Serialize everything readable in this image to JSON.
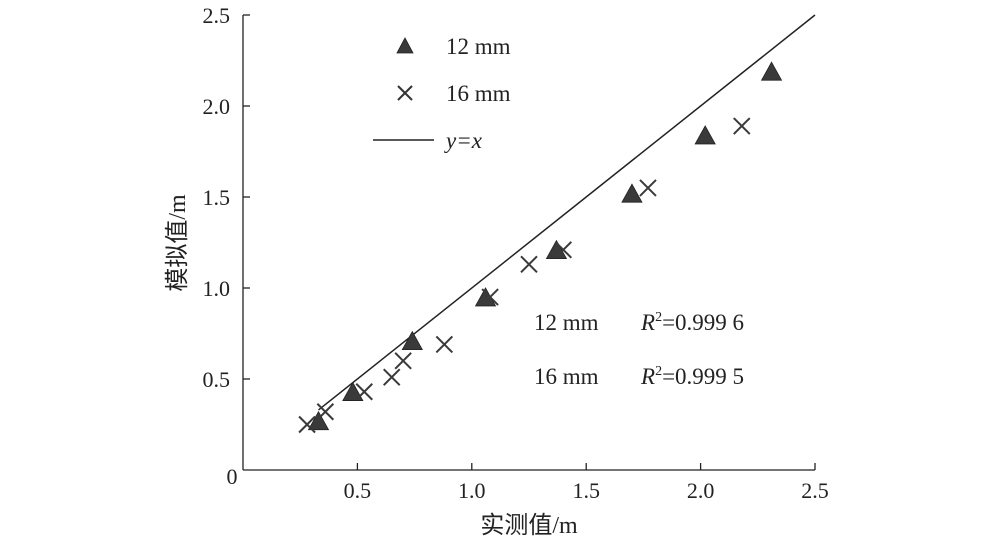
{
  "chart_data": {
    "type": "scatter",
    "xlabel": "实测值/m",
    "ylabel": "模拟值/m",
    "xlim": [
      0,
      2.5
    ],
    "ylim": [
      0,
      2.5
    ],
    "x_ticks": [
      "0.5",
      "1.0",
      "1.5",
      "2.0",
      "2.5"
    ],
    "y_ticks": [
      "0.5",
      "1.0",
      "1.5",
      "2.0",
      "2.5"
    ],
    "origin_label": "0",
    "grid": false,
    "legend_position": "top-left",
    "series": [
      {
        "name": "12 mm",
        "marker": "triangle",
        "color": "#3a3a3a",
        "points": [
          {
            "x": 0.33,
            "y": 0.26
          },
          {
            "x": 0.48,
            "y": 0.42
          },
          {
            "x": 0.74,
            "y": 0.7
          },
          {
            "x": 1.06,
            "y": 0.94
          },
          {
            "x": 1.37,
            "y": 1.2
          },
          {
            "x": 1.7,
            "y": 1.51
          },
          {
            "x": 2.02,
            "y": 1.83
          },
          {
            "x": 2.31,
            "y": 2.18
          }
        ]
      },
      {
        "name": "16 mm",
        "marker": "cross",
        "color": "#3a3a3a",
        "points": [
          {
            "x": 0.28,
            "y": 0.25
          },
          {
            "x": 0.36,
            "y": 0.32
          },
          {
            "x": 0.53,
            "y": 0.43
          },
          {
            "x": 0.65,
            "y": 0.51
          },
          {
            "x": 0.7,
            "y": 0.6
          },
          {
            "x": 0.88,
            "y": 0.69
          },
          {
            "x": 1.08,
            "y": 0.95
          },
          {
            "x": 1.25,
            "y": 1.13
          },
          {
            "x": 1.4,
            "y": 1.21
          },
          {
            "x": 1.77,
            "y": 1.55
          },
          {
            "x": 2.18,
            "y": 1.89
          }
        ]
      }
    ],
    "reference_line": {
      "name": "y=x",
      "color": "#222222",
      "from": [
        0.33,
        0.33
      ],
      "to": [
        2.5,
        2.5
      ]
    },
    "annotations": [
      {
        "series": "12 mm",
        "r2": "=0.999 6"
      },
      {
        "series": "16 mm",
        "r2": "=0.999 5"
      }
    ]
  }
}
